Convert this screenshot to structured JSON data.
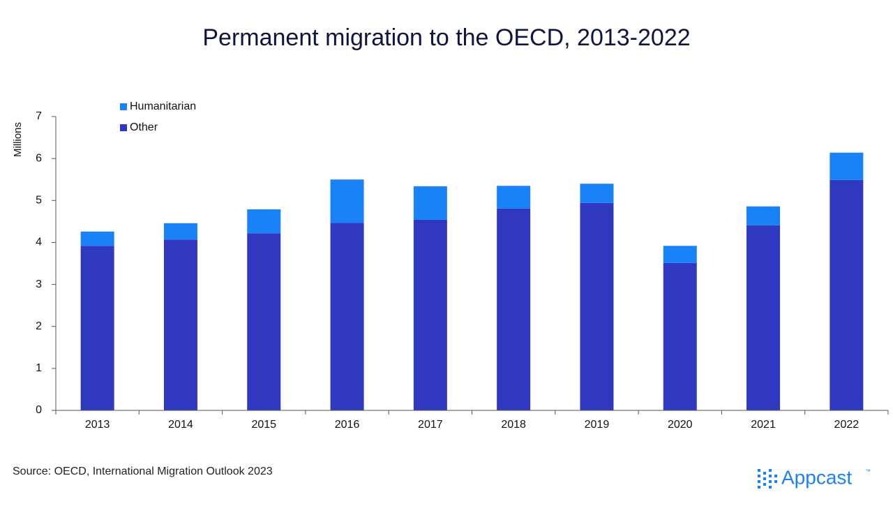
{
  "chart_data": {
    "type": "stacked_bar",
    "title": "Permanent migration to the OECD, 2013-2022",
    "y_label": "Millions",
    "categories": [
      "2013",
      "2014",
      "2015",
      "2016",
      "2017",
      "2018",
      "2019",
      "2020",
      "2021",
      "2022"
    ],
    "series": [
      {
        "name": "Other",
        "color": "#2f38bf",
        "values": [
          3.92,
          4.07,
          4.22,
          4.47,
          4.54,
          4.81,
          4.94,
          3.51,
          4.41,
          5.49
        ]
      },
      {
        "name": "Humanitarian",
        "color": "#1a82f7",
        "values": [
          0.34,
          0.39,
          0.57,
          1.03,
          0.8,
          0.54,
          0.46,
          0.41,
          0.45,
          0.65
        ]
      }
    ],
    "ylim": [
      0,
      7
    ],
    "yticks": [
      0,
      1,
      2,
      3,
      4,
      5,
      6,
      7
    ],
    "grid": false,
    "legend": "top-left",
    "source": "Source: OECD, International Migration Outlook 2023",
    "logo": "Appcast",
    "logo_mark": "™"
  }
}
